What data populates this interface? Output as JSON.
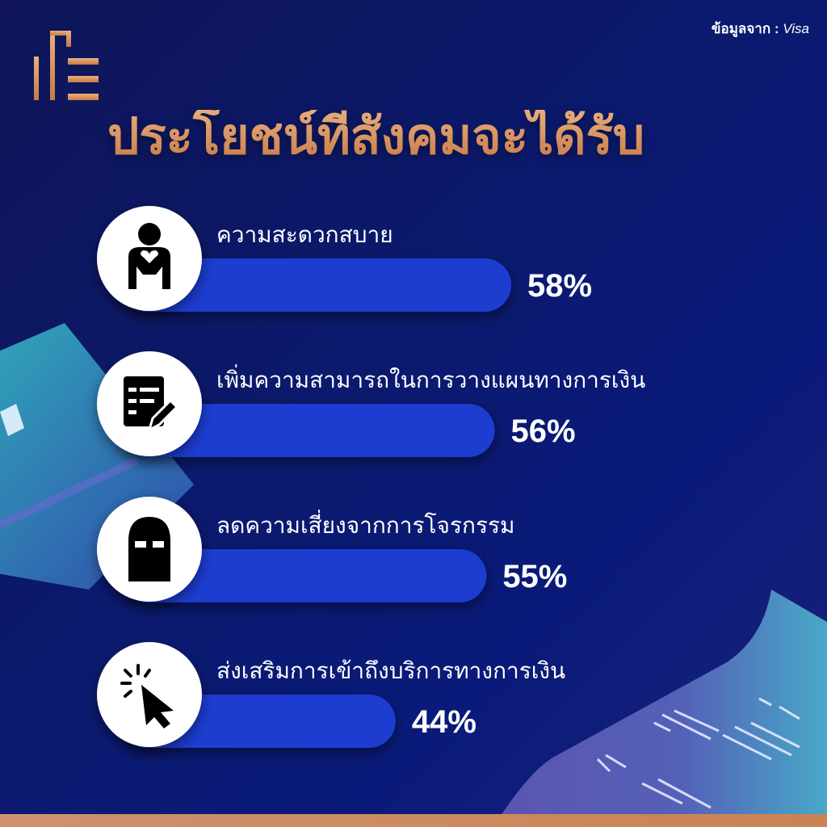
{
  "source": {
    "prefix": "ข้อมูลจาก :",
    "name": "Visa"
  },
  "title": "ประโยชน์ที่สังคมจะได้รับ",
  "colors": {
    "bar": "#1a3cd0",
    "accent": "#d98f5c",
    "background": "#0b1a6e"
  },
  "chart_data": {
    "type": "bar",
    "orientation": "horizontal",
    "title": "ประโยชน์ที่สังคมจะได้รับ",
    "categories": [
      "ความสะดวกสบาย",
      "เพิ่มความสามารถในการวางแผนทางการเงิน",
      "ลดความเสี่ยงจากการโจรกรรม",
      "ส่งเสริมการเข้าถึงบริการทางการเงิน"
    ],
    "values": [
      58,
      56,
      55,
      44
    ],
    "value_labels": [
      "58%",
      "56%",
      "55%",
      "44%"
    ],
    "icons": [
      "person-heart-icon",
      "document-edit-icon",
      "robber-mask-icon",
      "cursor-click-icon"
    ],
    "unit": "%",
    "grid": false
  }
}
